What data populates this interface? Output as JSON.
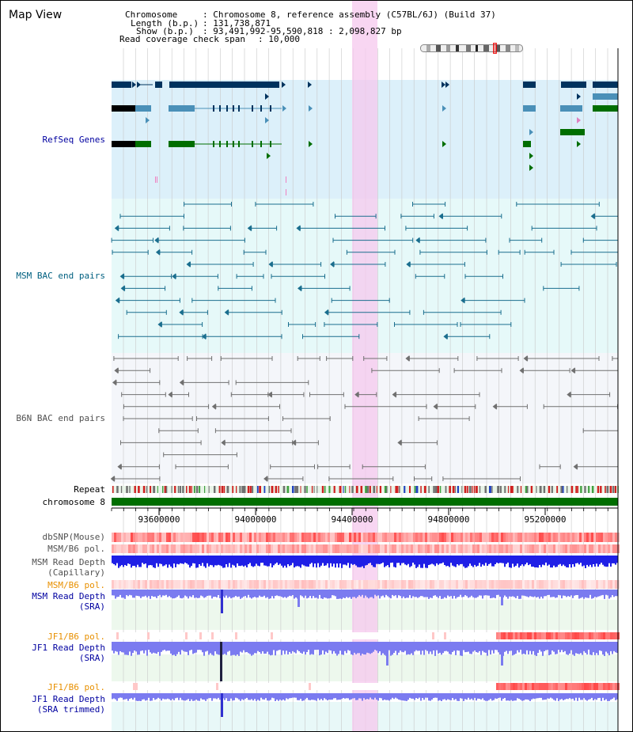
{
  "title": "Map View",
  "info": {
    "chromosome_label": "Chromosome",
    "chromosome_value": ": Chromosome 8, reference assembly (C57BL/6J) (Build 37)",
    "length_label": "Length (b.p.)",
    "length_value": ": 131,738,871",
    "show_label": "Show (b.p.)",
    "show_value": ": 93,491,992-95,590,818 : 2,098,827 bp",
    "coverage_label": "Read coverage check span",
    "coverage_value": ": 10,000"
  },
  "tracks": {
    "refseq": "RefSeq Genes",
    "msm_bac": "MSM BAC end pairs",
    "b6n_bac": "B6N BAC end pairs",
    "repeat": "Repeat",
    "chromosome": "chromosome 8",
    "dbsnp": "dbSNP(Mouse)",
    "msm_b6_pol_1": "MSM/B6 pol.",
    "msm_depth_cap_1": "MSM Read Depth",
    "msm_depth_cap_2": "(Capillary)",
    "msm_b6_pol_2": "MSM/B6 pol.",
    "msm_depth_sra_1": "MSM Read Depth",
    "msm_depth_sra_2": "(SRA)",
    "jf1_b6_pol_1": "JF1/B6 pol.",
    "jf1_depth_sra_1": "JF1 Read Depth",
    "jf1_depth_sra_2": "(SRA)",
    "jf1_b6_pol_2": "JF1/B6 pol.",
    "jf1_depth_trim_1": "JF1 Read Depth",
    "jf1_depth_trim_2": "(SRA trimmed)"
  },
  "axis": {
    "ticks": [
      "93600000",
      "94000000",
      "94400000",
      "94800000",
      "95200000"
    ]
  },
  "colors": {
    "refseq_dark": "#00335e",
    "refseq_mid": "#4a90b8",
    "refseq_green": "#006e00",
    "msm_bac": "#1a6e8e",
    "b6n_bac": "#707070",
    "highlight": "#f5c8ee",
    "depth_blue": "#1f1fe6",
    "depth_light": "#7b7bf0",
    "pol_red": "#e84040",
    "label_orange": "#e89000",
    "label_blue": "#0000a0",
    "label_teal": "#006080"
  }
}
